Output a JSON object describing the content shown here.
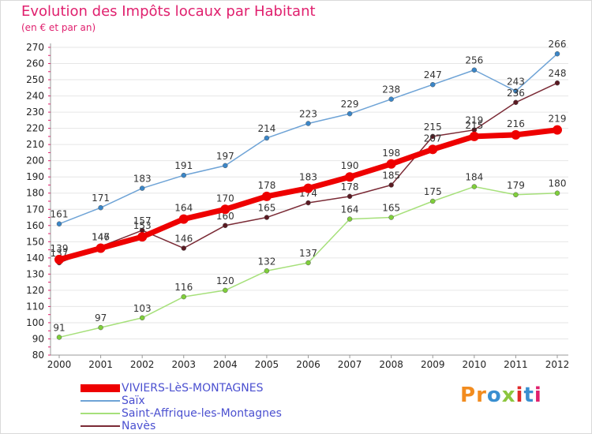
{
  "title": "Evolution des Impôts locaux par Habitant",
  "subtitle": "(en € et par an)",
  "logo": {
    "text": "Proxiti",
    "letters": [
      "P",
      "r",
      "o",
      "x",
      "i",
      "t",
      "i"
    ],
    "colors": [
      "#f28c1f",
      "#f28c1f",
      "#3a8fd0",
      "#8cc63f",
      "#e02a2a",
      "#3a8fd0",
      "#e0206e"
    ]
  },
  "chart_data": {
    "type": "line",
    "title": "Evolution des Impôts locaux par Habitant",
    "subtitle": "(en € et par an)",
    "xlabel": "",
    "ylabel": "",
    "categories": [
      "2000",
      "2001",
      "2002",
      "2003",
      "2004",
      "2005",
      "2006",
      "2007",
      "2008",
      "2009",
      "2010",
      "2011",
      "2012"
    ],
    "ylim": [
      80,
      270
    ],
    "ytick_step": 10,
    "grid": "horizontal",
    "legend_position": "bottom-left",
    "series": [
      {
        "name": "Saïx",
        "color": "#6ea3d6",
        "marker_color": "#3a86c8",
        "weight": "thin",
        "values": [
          161,
          171,
          183,
          191,
          197,
          214,
          223,
          229,
          238,
          247,
          256,
          243,
          266
        ],
        "labels": [
          "161",
          "171",
          "183",
          "191",
          "197",
          "214",
          "223",
          "229",
          "238",
          "247",
          "256",
          "243",
          "266"
        ]
      },
      {
        "name": "Saint-Affrique-les-Montagnes",
        "color": "#a6e07a",
        "marker_color": "#7fcf3a",
        "weight": "thin",
        "values": [
          91,
          97,
          103,
          116,
          120,
          132,
          137,
          164,
          165,
          175,
          184,
          179,
          180
        ],
        "labels": [
          "91",
          "97",
          "103",
          "116",
          "120",
          "132",
          "137",
          "164",
          "165",
          "175",
          "184",
          "179",
          "180"
        ]
      },
      {
        "name": "Navès",
        "color": "#7a2a35",
        "marker_color": "#5a1a22",
        "weight": "thin",
        "values": [
          137,
          147,
          157,
          146,
          160,
          165,
          174,
          178,
          185,
          215,
          219,
          236,
          248
        ],
        "labels": [
          "137",
          "147",
          "157",
          "146",
          "160",
          "165",
          "174",
          "178",
          "185",
          "215",
          "219",
          "236",
          "248"
        ]
      },
      {
        "name": "VIVIERS-LèS-MONTAGNES",
        "color": "#ee0000",
        "marker_color": "#ee0000",
        "weight": "thick",
        "values": [
          139,
          146,
          153,
          164,
          170,
          178,
          183,
          190,
          198,
          207,
          215,
          216,
          219
        ],
        "labels": [
          "139",
          "146",
          "153",
          "164",
          "170",
          "178",
          "183",
          "190",
          "198",
          "207",
          "215",
          "216",
          "219"
        ]
      }
    ],
    "legend": [
      {
        "name": "VIVIERS-LèS-MONTAGNES",
        "color": "#ee0000",
        "weight": "thick"
      },
      {
        "name": "Saïx",
        "color": "#6ea3d6",
        "weight": "thin"
      },
      {
        "name": "Saint-Affrique-les-Montagnes",
        "color": "#a6e07a",
        "weight": "thin"
      },
      {
        "name": "Navès",
        "color": "#7a2a35",
        "weight": "thin"
      }
    ]
  }
}
